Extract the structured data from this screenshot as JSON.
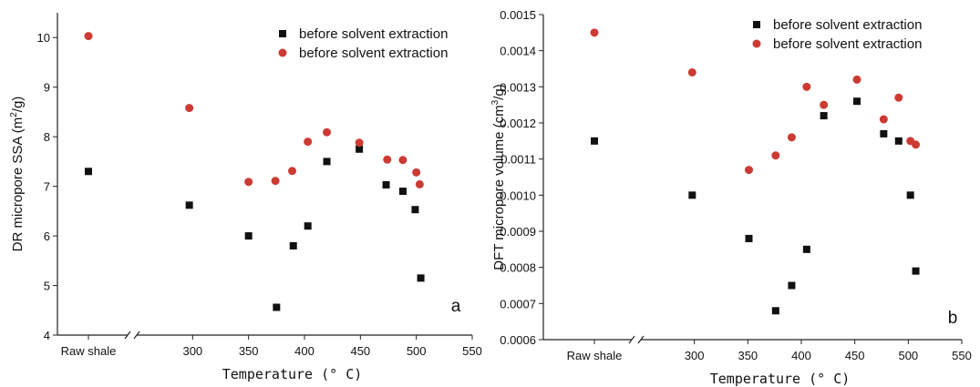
{
  "chart_data": [
    {
      "type": "scatter",
      "panel_label": "a",
      "xlabel": "Temperature (° C)",
      "ylabel": "DR micropore SSA (m²/g)",
      "ylabel_parts": [
        "DR micropore SSA (m",
        "2",
        "/g)"
      ],
      "xlim": [
        250,
        550
      ],
      "ylim": [
        4,
        10.5
      ],
      "x_ticks": [
        300,
        350,
        400,
        450,
        500,
        550
      ],
      "y_ticks": [
        4,
        5,
        6,
        7,
        8,
        9,
        10
      ],
      "x_tick_labels": [
        "300",
        "350",
        "400",
        "450",
        "500",
        "550"
      ],
      "y_tick_labels": [
        "4",
        "5",
        "6",
        "7",
        "8",
        "9",
        "10"
      ],
      "category_label": "Raw shale",
      "axis_break": true,
      "legend_position": "top-right",
      "series": [
        {
          "name": "before solvent extraction",
          "marker": "square",
          "color": "#111111",
          "raw_shale_value": 7.3,
          "points": [
            [
              297,
              6.62
            ],
            [
              350,
              6.0
            ],
            [
              375,
              4.56
            ],
            [
              390,
              5.8
            ],
            [
              403,
              6.2
            ],
            [
              420,
              7.5
            ],
            [
              449,
              7.75
            ],
            [
              473,
              7.03
            ],
            [
              488,
              6.9
            ],
            [
              499,
              6.53
            ],
            [
              504,
              5.15
            ]
          ]
        },
        {
          "name": "before solvent extraction",
          "marker": "circle",
          "color": "#cc3b33",
          "raw_shale_value": 10.03,
          "points": [
            [
              297,
              8.58
            ],
            [
              350,
              7.09
            ],
            [
              374,
              7.11
            ],
            [
              389,
              7.31
            ],
            [
              403,
              7.9
            ],
            [
              420,
              8.09
            ],
            [
              449,
              7.88
            ],
            [
              474,
              7.54
            ],
            [
              488,
              7.53
            ],
            [
              500,
              7.28
            ],
            [
              503,
              7.04
            ]
          ]
        }
      ]
    },
    {
      "type": "scatter",
      "panel_label": "b",
      "xlabel": "Temperature (° C)",
      "ylabel": "DFT micropore volume (cm³/g)",
      "ylabel_parts": [
        "DFT micropore volume (cm",
        "3",
        "/g)"
      ],
      "xlim": [
        250,
        550
      ],
      "ylim": [
        0.0006,
        0.0015
      ],
      "x_ticks": [
        300,
        350,
        400,
        450,
        500,
        550
      ],
      "y_ticks": [
        0.0006,
        0.0007,
        0.0008,
        0.0009,
        0.001,
        0.0011,
        0.0012,
        0.0013,
        0.0014,
        0.0015
      ],
      "x_tick_labels": [
        "300",
        "350",
        "400",
        "450",
        "500",
        "550"
      ],
      "y_tick_labels": [
        "0.0006",
        "0.0007",
        "0.0008",
        "0.0009",
        "0.0010",
        "0.0011",
        "0.0012",
        "0.0013",
        "0.0014",
        "0.0015"
      ],
      "category_label": "Raw shale",
      "axis_break": true,
      "legend_position": "top-right",
      "series": [
        {
          "name": "before solvent extraction",
          "marker": "square",
          "color": "#111111",
          "raw_shale_value": 0.00115,
          "points": [
            [
              298,
              0.001
            ],
            [
              351,
              0.00088
            ],
            [
              376,
              0.00068
            ],
            [
              391,
              0.00075
            ],
            [
              405,
              0.00085
            ],
            [
              421,
              0.00122
            ],
            [
              452,
              0.00126
            ],
            [
              477,
              0.00117
            ],
            [
              491,
              0.00115
            ],
            [
              502,
              0.001
            ],
            [
              507,
              0.00079
            ]
          ]
        },
        {
          "name": "before solvent extraction",
          "marker": "circle",
          "color": "#cc3b33",
          "raw_shale_value": 0.00145,
          "points": [
            [
              298,
              0.00134
            ],
            [
              351,
              0.00107
            ],
            [
              376,
              0.00111
            ],
            [
              391,
              0.00116
            ],
            [
              405,
              0.0013
            ],
            [
              421,
              0.00125
            ],
            [
              452,
              0.00132
            ],
            [
              477,
              0.00121
            ],
            [
              491,
              0.00127
            ],
            [
              502,
              0.00115
            ],
            [
              507,
              0.00114
            ]
          ]
        }
      ]
    }
  ]
}
